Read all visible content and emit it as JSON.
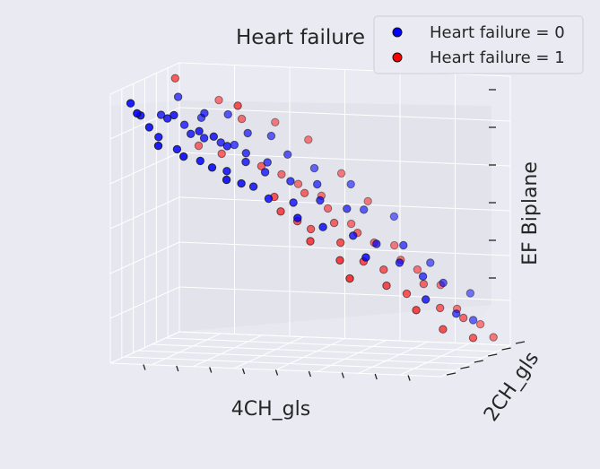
{
  "chart_data": {
    "type": "scatter",
    "title": "Heart failure",
    "xlabel": "4CH_gls",
    "ylabel": "2CH_gls",
    "zlabel": "EF Biplane",
    "grid": true,
    "legend_placement": "top-right",
    "series": [
      {
        "name": "Heart failure = 0",
        "color": "#0000ff",
        "points": [
          [
            0.03,
            0.15,
            0.95
          ],
          [
            0.05,
            0.2,
            0.9
          ],
          [
            0.06,
            0.1,
            0.92
          ],
          [
            0.07,
            0.4,
            0.88
          ],
          [
            0.08,
            0.18,
            0.86
          ],
          [
            0.09,
            0.55,
            0.93
          ],
          [
            0.1,
            0.22,
            0.82
          ],
          [
            0.11,
            0.3,
            0.88
          ],
          [
            0.12,
            0.12,
            0.8
          ],
          [
            0.13,
            0.45,
            0.84
          ],
          [
            0.14,
            0.25,
            0.9
          ],
          [
            0.15,
            0.6,
            0.85
          ],
          [
            0.16,
            0.2,
            0.78
          ],
          [
            0.17,
            0.35,
            0.82
          ],
          [
            0.18,
            0.5,
            0.88
          ],
          [
            0.19,
            0.15,
            0.76
          ],
          [
            0.2,
            0.4,
            0.8
          ],
          [
            0.21,
            0.28,
            0.84
          ],
          [
            0.22,
            0.65,
            0.86
          ],
          [
            0.23,
            0.2,
            0.74
          ],
          [
            0.24,
            0.45,
            0.78
          ],
          [
            0.25,
            0.3,
            0.82
          ],
          [
            0.26,
            0.55,
            0.76
          ],
          [
            0.27,
            0.18,
            0.72
          ],
          [
            0.28,
            0.35,
            0.78
          ],
          [
            0.29,
            0.6,
            0.8
          ],
          [
            0.3,
            0.25,
            0.7
          ],
          [
            0.31,
            0.48,
            0.74
          ],
          [
            0.32,
            0.15,
            0.68
          ],
          [
            0.33,
            0.38,
            0.72
          ],
          [
            0.34,
            0.7,
            0.78
          ],
          [
            0.35,
            0.22,
            0.66
          ],
          [
            0.36,
            0.55,
            0.7
          ],
          [
            0.37,
            0.3,
            0.64
          ],
          [
            0.38,
            0.42,
            0.68
          ],
          [
            0.4,
            0.65,
            0.72
          ],
          [
            0.42,
            0.28,
            0.6
          ],
          [
            0.44,
            0.5,
            0.64
          ],
          [
            0.46,
            0.75,
            0.66
          ],
          [
            0.48,
            0.35,
            0.58
          ],
          [
            0.5,
            0.6,
            0.62
          ],
          [
            0.52,
            0.22,
            0.54
          ],
          [
            0.54,
            0.45,
            0.58
          ],
          [
            0.56,
            0.8,
            0.6
          ],
          [
            0.58,
            0.3,
            0.5
          ],
          [
            0.6,
            0.55,
            0.54
          ],
          [
            0.62,
            0.7,
            0.52
          ],
          [
            0.65,
            0.4,
            0.46
          ],
          [
            0.68,
            0.85,
            0.48
          ],
          [
            0.7,
            0.5,
            0.42
          ],
          [
            0.72,
            0.25,
            0.4
          ],
          [
            0.75,
            0.65,
            0.4
          ],
          [
            0.78,
            0.45,
            0.36
          ],
          [
            0.8,
            0.8,
            0.32
          ],
          [
            0.83,
            0.55,
            0.3
          ],
          [
            0.86,
            0.7,
            0.26
          ],
          [
            0.88,
            0.35,
            0.24
          ],
          [
            0.9,
            0.9,
            0.2
          ],
          [
            0.92,
            0.6,
            0.16
          ],
          [
            0.94,
            0.75,
            0.12
          ]
        ]
      },
      {
        "name": "Heart failure = 1",
        "color": "#ff0000",
        "points": [
          [
            0.05,
            0.7,
            0.98
          ],
          [
            0.1,
            0.8,
            0.72
          ],
          [
            0.14,
            0.9,
            0.88
          ],
          [
            0.18,
            0.75,
            0.7
          ],
          [
            0.22,
            0.85,
            0.82
          ],
          [
            0.26,
            0.6,
            0.9
          ],
          [
            0.3,
            0.75,
            0.66
          ],
          [
            0.34,
            0.85,
            0.62
          ],
          [
            0.36,
            0.65,
            0.56
          ],
          [
            0.38,
            0.9,
            0.58
          ],
          [
            0.4,
            0.55,
            0.52
          ],
          [
            0.42,
            0.8,
            0.56
          ],
          [
            0.44,
            0.6,
            0.48
          ],
          [
            0.45,
            0.9,
            0.54
          ],
          [
            0.46,
            0.7,
            0.44
          ],
          [
            0.48,
            0.85,
            0.5
          ],
          [
            0.5,
            0.5,
            0.42
          ],
          [
            0.52,
            0.75,
            0.46
          ],
          [
            0.54,
            0.9,
            0.44
          ],
          [
            0.56,
            0.65,
            0.4
          ],
          [
            0.58,
            0.8,
            0.42
          ],
          [
            0.6,
            0.45,
            0.36
          ],
          [
            0.62,
            0.85,
            0.38
          ],
          [
            0.64,
            0.6,
            0.34
          ],
          [
            0.66,
            0.95,
            0.36
          ],
          [
            0.68,
            0.7,
            0.3
          ],
          [
            0.7,
            0.85,
            0.32
          ],
          [
            0.72,
            0.55,
            0.26
          ],
          [
            0.74,
            0.9,
            0.28
          ],
          [
            0.76,
            0.65,
            0.22
          ],
          [
            0.78,
            0.8,
            0.24
          ],
          [
            0.8,
            0.95,
            0.22
          ],
          [
            0.82,
            0.5,
            0.18
          ],
          [
            0.84,
            0.75,
            0.16
          ],
          [
            0.86,
            0.9,
            0.14
          ],
          [
            0.88,
            0.6,
            0.1
          ],
          [
            0.9,
            0.8,
            0.12
          ],
          [
            0.92,
            0.95,
            0.08
          ],
          [
            0.95,
            0.7,
            0.06
          ],
          [
            0.97,
            0.9,
            0.04
          ],
          [
            0.3,
            0.95,
            0.8
          ],
          [
            0.4,
            0.95,
            0.74
          ],
          [
            0.5,
            0.95,
            0.62
          ],
          [
            0.58,
            0.95,
            0.52
          ],
          [
            0.64,
            0.4,
            0.3
          ]
        ]
      }
    ]
  }
}
